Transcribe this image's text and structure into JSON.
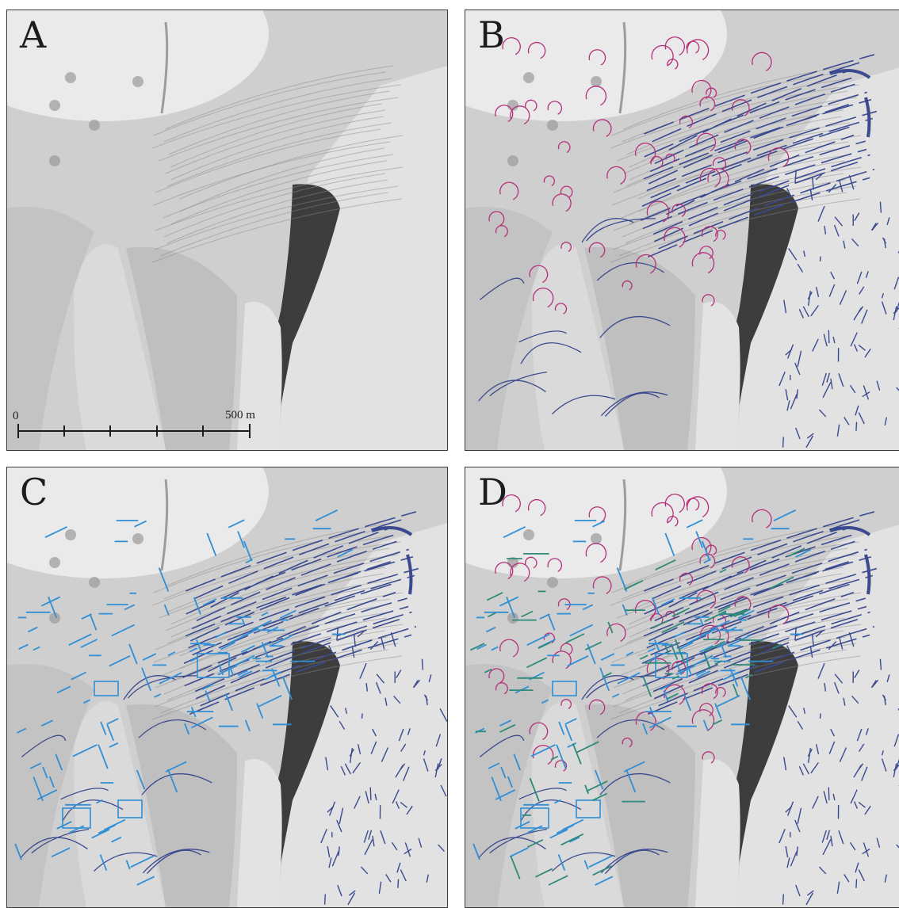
{
  "panels": [
    {
      "letter": "A",
      "layers": []
    },
    {
      "letter": "B",
      "layers": [
        "dark-blue",
        "magenta"
      ]
    },
    {
      "letter": "C",
      "layers": [
        "dark-blue",
        "light-blue"
      ]
    },
    {
      "letter": "D",
      "layers": [
        "dark-blue",
        "magenta",
        "light-blue",
        "teal"
      ]
    }
  ],
  "scalebar": {
    "min_label": "0",
    "max_label": "500 m",
    "segments": 5
  },
  "colors": {
    "terrain_light": "#e6e6e6",
    "terrain_mid": "#bdbdbd",
    "terrain_dark": "#2b2b2b",
    "dark_blue": "#3b4a8f",
    "magenta": "#b5307a",
    "light_blue": "#2f8fd6",
    "teal": "#2e8a78"
  }
}
